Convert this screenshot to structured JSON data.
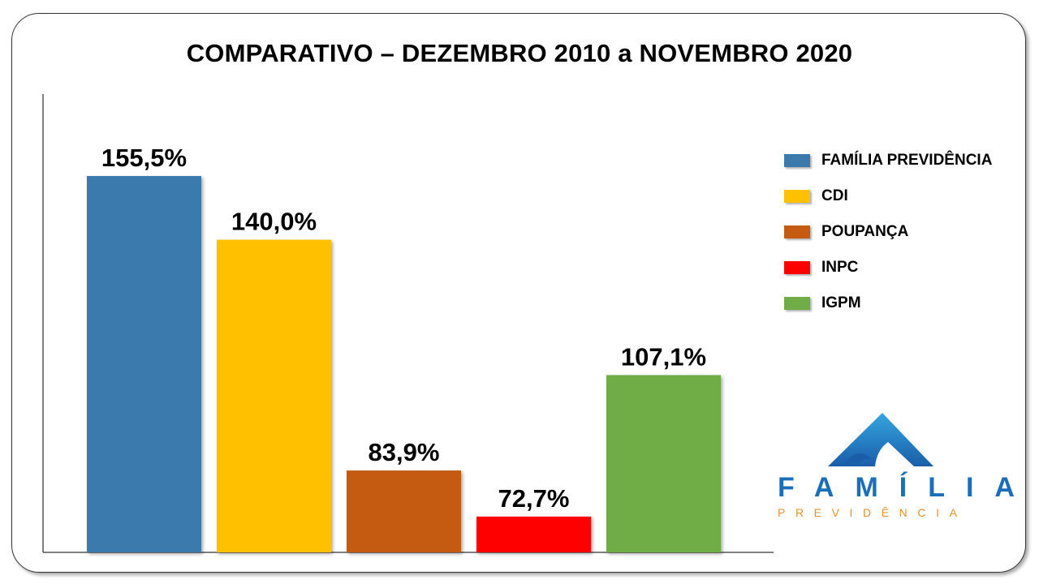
{
  "chart_data": {
    "type": "bar",
    "title": "COMPARATIVO – DEZEMBRO 2010 a NOVEMBRO 2020",
    "categories": [
      "FAMÍLIA PREVIDÊNCIA",
      "CDI",
      "POUPANÇA",
      "INPC",
      "IGPM"
    ],
    "values": [
      155.5,
      140.0,
      83.9,
      72.7,
      107.1
    ],
    "data_labels": [
      "155,5%",
      "140,0%",
      "83,9%",
      "72,7%",
      "107,1%"
    ],
    "colors": [
      "#3a7aad",
      "#ffc000",
      "#c55a11",
      "#ff0000",
      "#70ad47"
    ],
    "baseline": 64.0,
    "xlabel": "",
    "ylabel": "",
    "grid": false,
    "legend_position": "right"
  },
  "logo": {
    "word": "FAMÍLIA",
    "sub": "PREVIDÊNCIA",
    "colors": {
      "primary": "#1a6fb8",
      "accent": "#e8902c"
    }
  }
}
